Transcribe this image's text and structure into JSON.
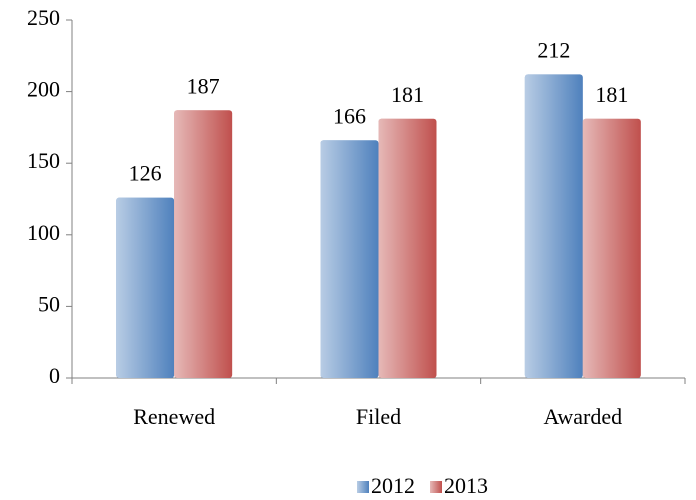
{
  "chart_data": {
    "type": "bar",
    "categories": [
      "Renewed",
      "Filed",
      "Awarded"
    ],
    "series": [
      {
        "name": "2012",
        "color": "#4f81bd",
        "values": [
          126,
          166,
          212
        ]
      },
      {
        "name": "2013",
        "color": "#c0504d",
        "values": [
          187,
          181,
          181
        ]
      }
    ],
    "ylim": [
      0,
      250
    ],
    "yticks": [
      0,
      50,
      100,
      150,
      200,
      250
    ],
    "grid": false,
    "legend": "bottom"
  }
}
